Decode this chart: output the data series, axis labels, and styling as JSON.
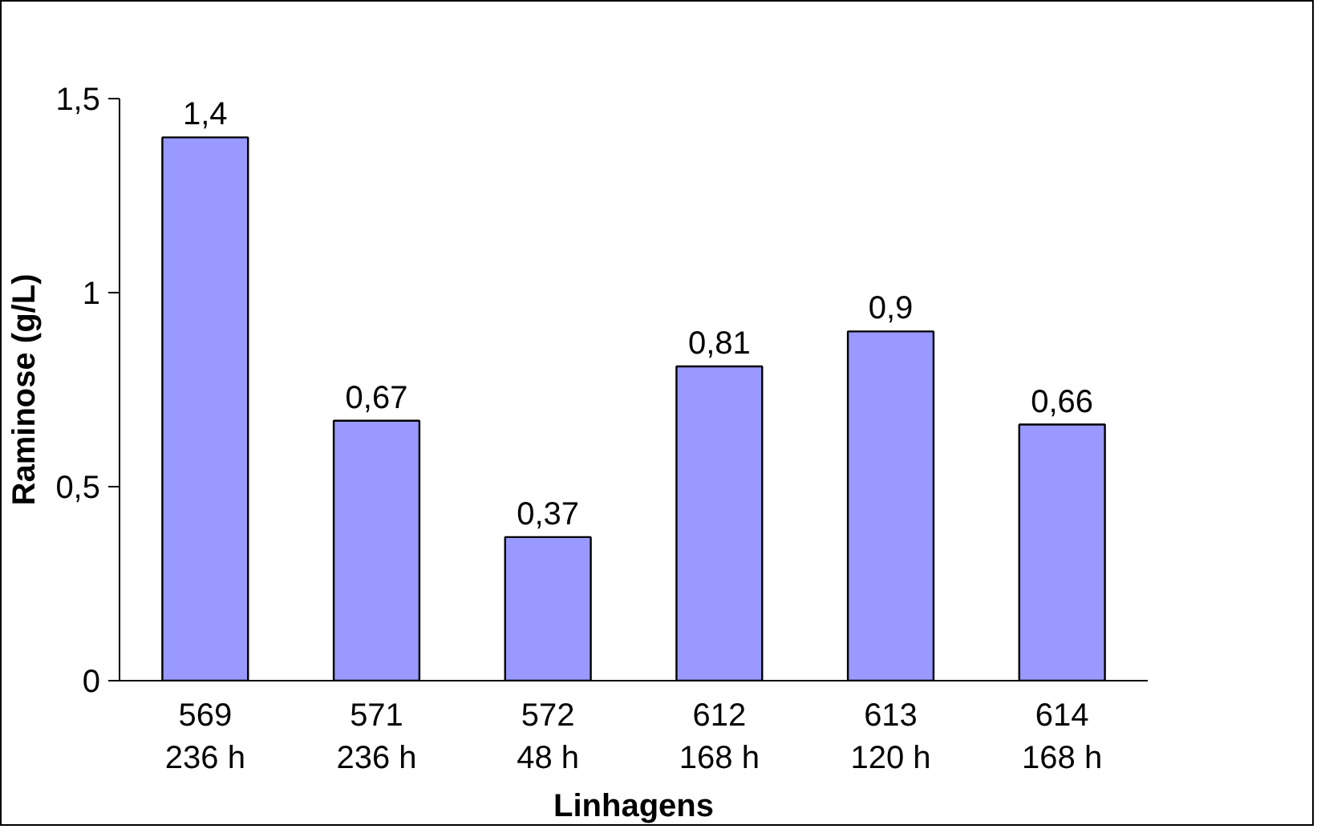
{
  "chart_data": {
    "type": "bar",
    "xlabel": "Linhagens",
    "ylabel": "Raminose (g/L)",
    "categories": [
      "569\n236 h",
      "571\n236 h",
      "572\n48 h",
      "612\n168 h",
      "613\n120 h",
      "614\n168 h"
    ],
    "values": [
      1.4,
      0.67,
      0.37,
      0.81,
      0.9,
      0.66
    ],
    "value_labels": [
      "1,4",
      "0,67",
      "0,37",
      "0,81",
      "0,9",
      "0,66"
    ],
    "color": "#9999ff",
    "ylim": [
      0,
      1.5
    ],
    "yticks": [
      0,
      {
        "value": 0.5,
        "label": "0,5"
      },
      1,
      {
        "value": 1.5,
        "label": "1,5"
      }
    ],
    "grid": false
  }
}
